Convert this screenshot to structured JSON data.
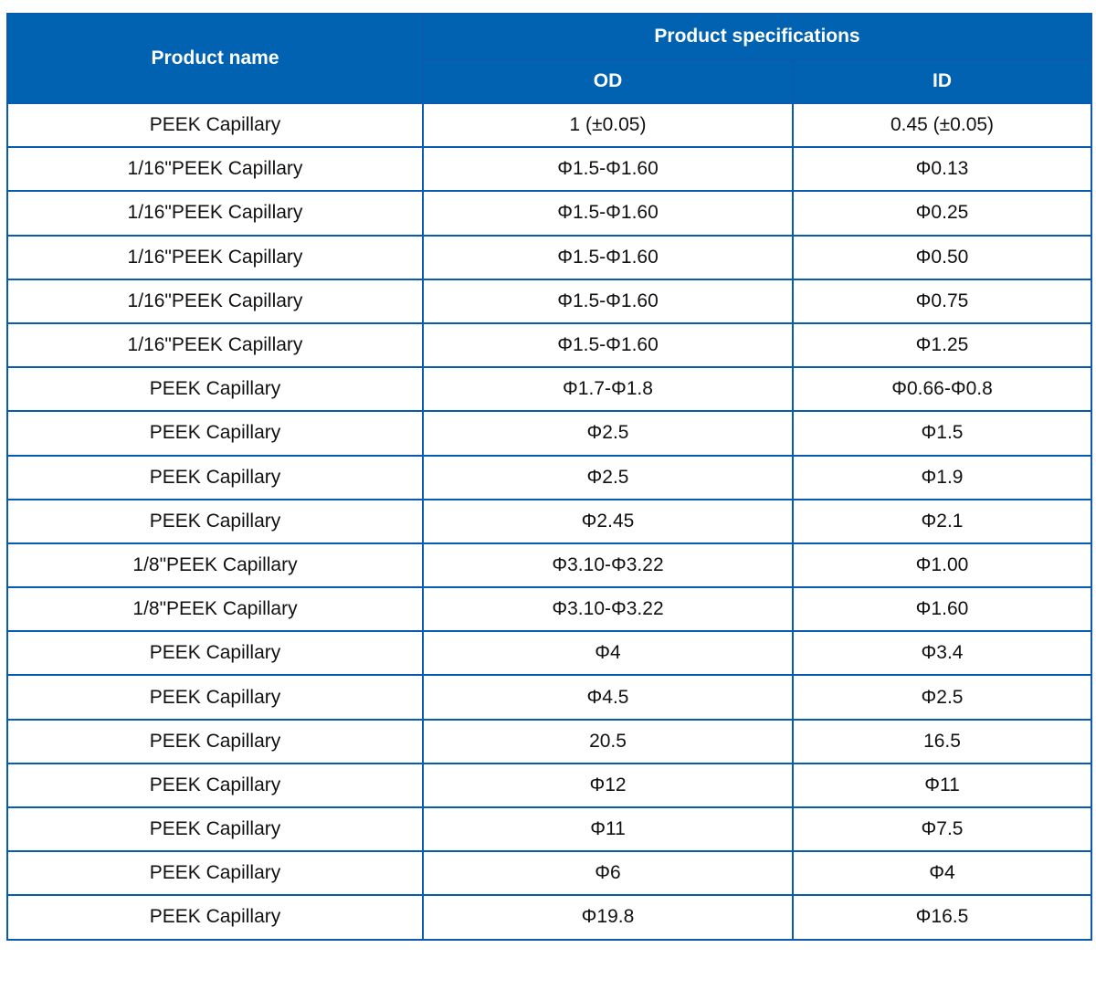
{
  "table": {
    "header": {
      "product_name": "Product name",
      "product_specifications": "Product specifications",
      "od": "OD",
      "id": "ID"
    },
    "rows": [
      {
        "name": "PEEK Capillary",
        "od": "1 (±0.05)",
        "id": "0.45 (±0.05)"
      },
      {
        "name": "1/16\"PEEK Capillary",
        "od": "Φ1.5-Φ1.60",
        "id": "Φ0.13"
      },
      {
        "name": "1/16\"PEEK Capillary",
        "od": "Φ1.5-Φ1.60",
        "id": "Φ0.25"
      },
      {
        "name": "1/16\"PEEK Capillary",
        "od": "Φ1.5-Φ1.60",
        "id": "Φ0.50"
      },
      {
        "name": "1/16\"PEEK Capillary",
        "od": "Φ1.5-Φ1.60",
        "id": "Φ0.75"
      },
      {
        "name": "1/16\"PEEK Capillary",
        "od": "Φ1.5-Φ1.60",
        "id": "Φ1.25"
      },
      {
        "name": "PEEK Capillary",
        "od": "Φ1.7-Φ1.8",
        "id": "Φ0.66-Φ0.8"
      },
      {
        "name": "PEEK Capillary",
        "od": "Φ2.5",
        "id": "Φ1.5"
      },
      {
        "name": "PEEK Capillary",
        "od": "Φ2.5",
        "id": "Φ1.9"
      },
      {
        "name": "PEEK Capillary",
        "od": "Φ2.45",
        "id": "Φ2.1"
      },
      {
        "name": "1/8\"PEEK Capillary",
        "od": "Φ3.10-Φ3.22",
        "id": "Φ1.00"
      },
      {
        "name": "1/8\"PEEK Capillary",
        "od": "Φ3.10-Φ3.22",
        "id": "Φ1.60"
      },
      {
        "name": "PEEK Capillary",
        "od": "Φ4",
        "id": "Φ3.4"
      },
      {
        "name": "PEEK Capillary",
        "od": "Φ4.5",
        "id": "Φ2.5"
      },
      {
        "name": "PEEK Capillary",
        "od": "20.5",
        "id": "16.5"
      },
      {
        "name": "PEEK Capillary",
        "od": "Φ12",
        "id": "Φ11"
      },
      {
        "name": "PEEK Capillary",
        "od": "Φ11",
        "id": "Φ7.5"
      },
      {
        "name": "PEEK Capillary",
        "od": "Φ6",
        "id": "Φ4"
      },
      {
        "name": "PEEK Capillary",
        "od": "Φ19.8",
        "id": "Φ16.5"
      }
    ],
    "colors": {
      "header_background": "#0062b1",
      "header_text": "#ffffff",
      "border": "#0a5ab2",
      "cell_text": "#111111",
      "page_background": "#ffffff"
    }
  }
}
